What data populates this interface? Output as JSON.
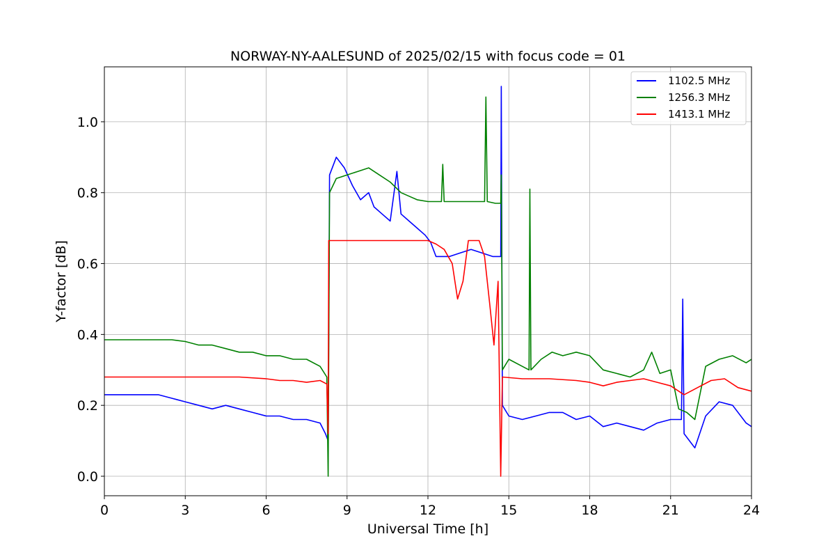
{
  "chart_data": {
    "type": "line",
    "title": "NORWAY-NY-AALESUND of 2025/02/15 with focus code = 01",
    "xlabel": "Universal Time [h]",
    "ylabel": "Y-factor [dB]",
    "xlim": [
      0,
      24
    ],
    "ylim": [
      -0.055,
      1.155
    ],
    "x_ticks": [
      0,
      3,
      6,
      9,
      12,
      15,
      18,
      21,
      24
    ],
    "y_ticks": [
      0.0,
      0.2,
      0.4,
      0.6,
      0.8,
      1.0
    ],
    "grid": true,
    "legend_position": "top-right",
    "series": [
      {
        "name": "1102.5 MHz",
        "color": "#0000ff",
        "points": [
          [
            0,
            0.23
          ],
          [
            0.5,
            0.23
          ],
          [
            1.0,
            0.23
          ],
          [
            1.5,
            0.23
          ],
          [
            2.0,
            0.23
          ],
          [
            2.5,
            0.22
          ],
          [
            3.0,
            0.21
          ],
          [
            3.5,
            0.2
          ],
          [
            4.0,
            0.19
          ],
          [
            4.5,
            0.2
          ],
          [
            5.0,
            0.19
          ],
          [
            5.5,
            0.18
          ],
          [
            6.0,
            0.17
          ],
          [
            6.5,
            0.17
          ],
          [
            7.0,
            0.16
          ],
          [
            7.5,
            0.16
          ],
          [
            8.0,
            0.15
          ],
          [
            8.2,
            0.12
          ],
          [
            8.3,
            0.1
          ],
          [
            8.35,
            0.85
          ],
          [
            8.6,
            0.9
          ],
          [
            8.9,
            0.87
          ],
          [
            9.2,
            0.82
          ],
          [
            9.5,
            0.78
          ],
          [
            9.8,
            0.8
          ],
          [
            10.0,
            0.76
          ],
          [
            10.3,
            0.74
          ],
          [
            10.6,
            0.72
          ],
          [
            10.85,
            0.86
          ],
          [
            11.0,
            0.74
          ],
          [
            11.3,
            0.72
          ],
          [
            11.6,
            0.7
          ],
          [
            11.9,
            0.68
          ],
          [
            12.1,
            0.66
          ],
          [
            12.3,
            0.62
          ],
          [
            12.8,
            0.62
          ],
          [
            13.2,
            0.63
          ],
          [
            13.6,
            0.64
          ],
          [
            14.0,
            0.63
          ],
          [
            14.4,
            0.62
          ],
          [
            14.7,
            0.62
          ],
          [
            14.72,
            1.1
          ],
          [
            14.76,
            0.2
          ],
          [
            15.0,
            0.17
          ],
          [
            15.5,
            0.16
          ],
          [
            16.0,
            0.17
          ],
          [
            16.5,
            0.18
          ],
          [
            17.0,
            0.18
          ],
          [
            17.5,
            0.16
          ],
          [
            18.0,
            0.17
          ],
          [
            18.5,
            0.14
          ],
          [
            19.0,
            0.15
          ],
          [
            19.5,
            0.14
          ],
          [
            20.0,
            0.13
          ],
          [
            20.5,
            0.15
          ],
          [
            21.0,
            0.16
          ],
          [
            21.4,
            0.16
          ],
          [
            21.45,
            0.5
          ],
          [
            21.5,
            0.12
          ],
          [
            21.9,
            0.08
          ],
          [
            22.3,
            0.17
          ],
          [
            22.8,
            0.21
          ],
          [
            23.3,
            0.2
          ],
          [
            23.8,
            0.15
          ],
          [
            24.0,
            0.14
          ]
        ]
      },
      {
        "name": "1256.3 MHz",
        "color": "#008000",
        "points": [
          [
            0,
            0.385
          ],
          [
            0.5,
            0.385
          ],
          [
            1.0,
            0.385
          ],
          [
            1.5,
            0.385
          ],
          [
            2.0,
            0.385
          ],
          [
            2.5,
            0.385
          ],
          [
            3.0,
            0.38
          ],
          [
            3.5,
            0.37
          ],
          [
            4.0,
            0.37
          ],
          [
            4.5,
            0.36
          ],
          [
            5.0,
            0.35
          ],
          [
            5.5,
            0.35
          ],
          [
            6.0,
            0.34
          ],
          [
            6.5,
            0.34
          ],
          [
            7.0,
            0.33
          ],
          [
            7.5,
            0.33
          ],
          [
            8.0,
            0.31
          ],
          [
            8.25,
            0.28
          ],
          [
            8.3,
            0.0
          ],
          [
            8.35,
            0.8
          ],
          [
            8.6,
            0.84
          ],
          [
            9.0,
            0.85
          ],
          [
            9.4,
            0.86
          ],
          [
            9.8,
            0.87
          ],
          [
            10.2,
            0.85
          ],
          [
            10.6,
            0.83
          ],
          [
            11.0,
            0.8
          ],
          [
            11.3,
            0.79
          ],
          [
            11.6,
            0.78
          ],
          [
            12.0,
            0.775
          ],
          [
            12.5,
            0.775
          ],
          [
            12.55,
            0.88
          ],
          [
            12.6,
            0.775
          ],
          [
            13.5,
            0.775
          ],
          [
            14.1,
            0.775
          ],
          [
            14.15,
            1.07
          ],
          [
            14.2,
            0.775
          ],
          [
            14.5,
            0.77
          ],
          [
            14.7,
            0.77
          ],
          [
            14.72,
            0.85
          ],
          [
            14.76,
            0.3
          ],
          [
            15.0,
            0.33
          ],
          [
            15.5,
            0.31
          ],
          [
            15.75,
            0.3
          ],
          [
            15.78,
            0.81
          ],
          [
            15.82,
            0.3
          ],
          [
            16.2,
            0.33
          ],
          [
            16.6,
            0.35
          ],
          [
            17.0,
            0.34
          ],
          [
            17.5,
            0.35
          ],
          [
            18.0,
            0.34
          ],
          [
            18.5,
            0.3
          ],
          [
            19.0,
            0.29
          ],
          [
            19.5,
            0.28
          ],
          [
            20.0,
            0.3
          ],
          [
            20.3,
            0.35
          ],
          [
            20.6,
            0.29
          ],
          [
            21.0,
            0.3
          ],
          [
            21.3,
            0.19
          ],
          [
            21.6,
            0.18
          ],
          [
            21.9,
            0.16
          ],
          [
            22.3,
            0.31
          ],
          [
            22.8,
            0.33
          ],
          [
            23.3,
            0.34
          ],
          [
            23.8,
            0.32
          ],
          [
            24.0,
            0.33
          ]
        ]
      },
      {
        "name": "1413.1 MHz",
        "color": "#ff0000",
        "points": [
          [
            0,
            0.28
          ],
          [
            1.0,
            0.28
          ],
          [
            2.0,
            0.28
          ],
          [
            3.0,
            0.28
          ],
          [
            4.0,
            0.28
          ],
          [
            5.0,
            0.28
          ],
          [
            6.0,
            0.275
          ],
          [
            6.5,
            0.27
          ],
          [
            7.0,
            0.27
          ],
          [
            7.5,
            0.265
          ],
          [
            8.0,
            0.27
          ],
          [
            8.25,
            0.26
          ],
          [
            8.3,
            0.12
          ],
          [
            8.32,
            0.665
          ],
          [
            9.0,
            0.665
          ],
          [
            10.0,
            0.665
          ],
          [
            11.0,
            0.665
          ],
          [
            12.0,
            0.665
          ],
          [
            12.3,
            0.655
          ],
          [
            12.6,
            0.64
          ],
          [
            12.9,
            0.6
          ],
          [
            13.1,
            0.5
          ],
          [
            13.3,
            0.55
          ],
          [
            13.5,
            0.665
          ],
          [
            13.9,
            0.665
          ],
          [
            14.1,
            0.62
          ],
          [
            14.3,
            0.48
          ],
          [
            14.45,
            0.37
          ],
          [
            14.6,
            0.55
          ],
          [
            14.7,
            0.0
          ],
          [
            14.76,
            0.28
          ],
          [
            15.5,
            0.275
          ],
          [
            16.5,
            0.275
          ],
          [
            17.5,
            0.27
          ],
          [
            18.0,
            0.265
          ],
          [
            18.5,
            0.255
          ],
          [
            19.0,
            0.265
          ],
          [
            19.5,
            0.27
          ],
          [
            20.0,
            0.275
          ],
          [
            20.5,
            0.265
          ],
          [
            21.0,
            0.255
          ],
          [
            21.5,
            0.23
          ],
          [
            22.0,
            0.25
          ],
          [
            22.5,
            0.27
          ],
          [
            23.0,
            0.275
          ],
          [
            23.5,
            0.25
          ],
          [
            24.0,
            0.24
          ]
        ]
      }
    ]
  }
}
